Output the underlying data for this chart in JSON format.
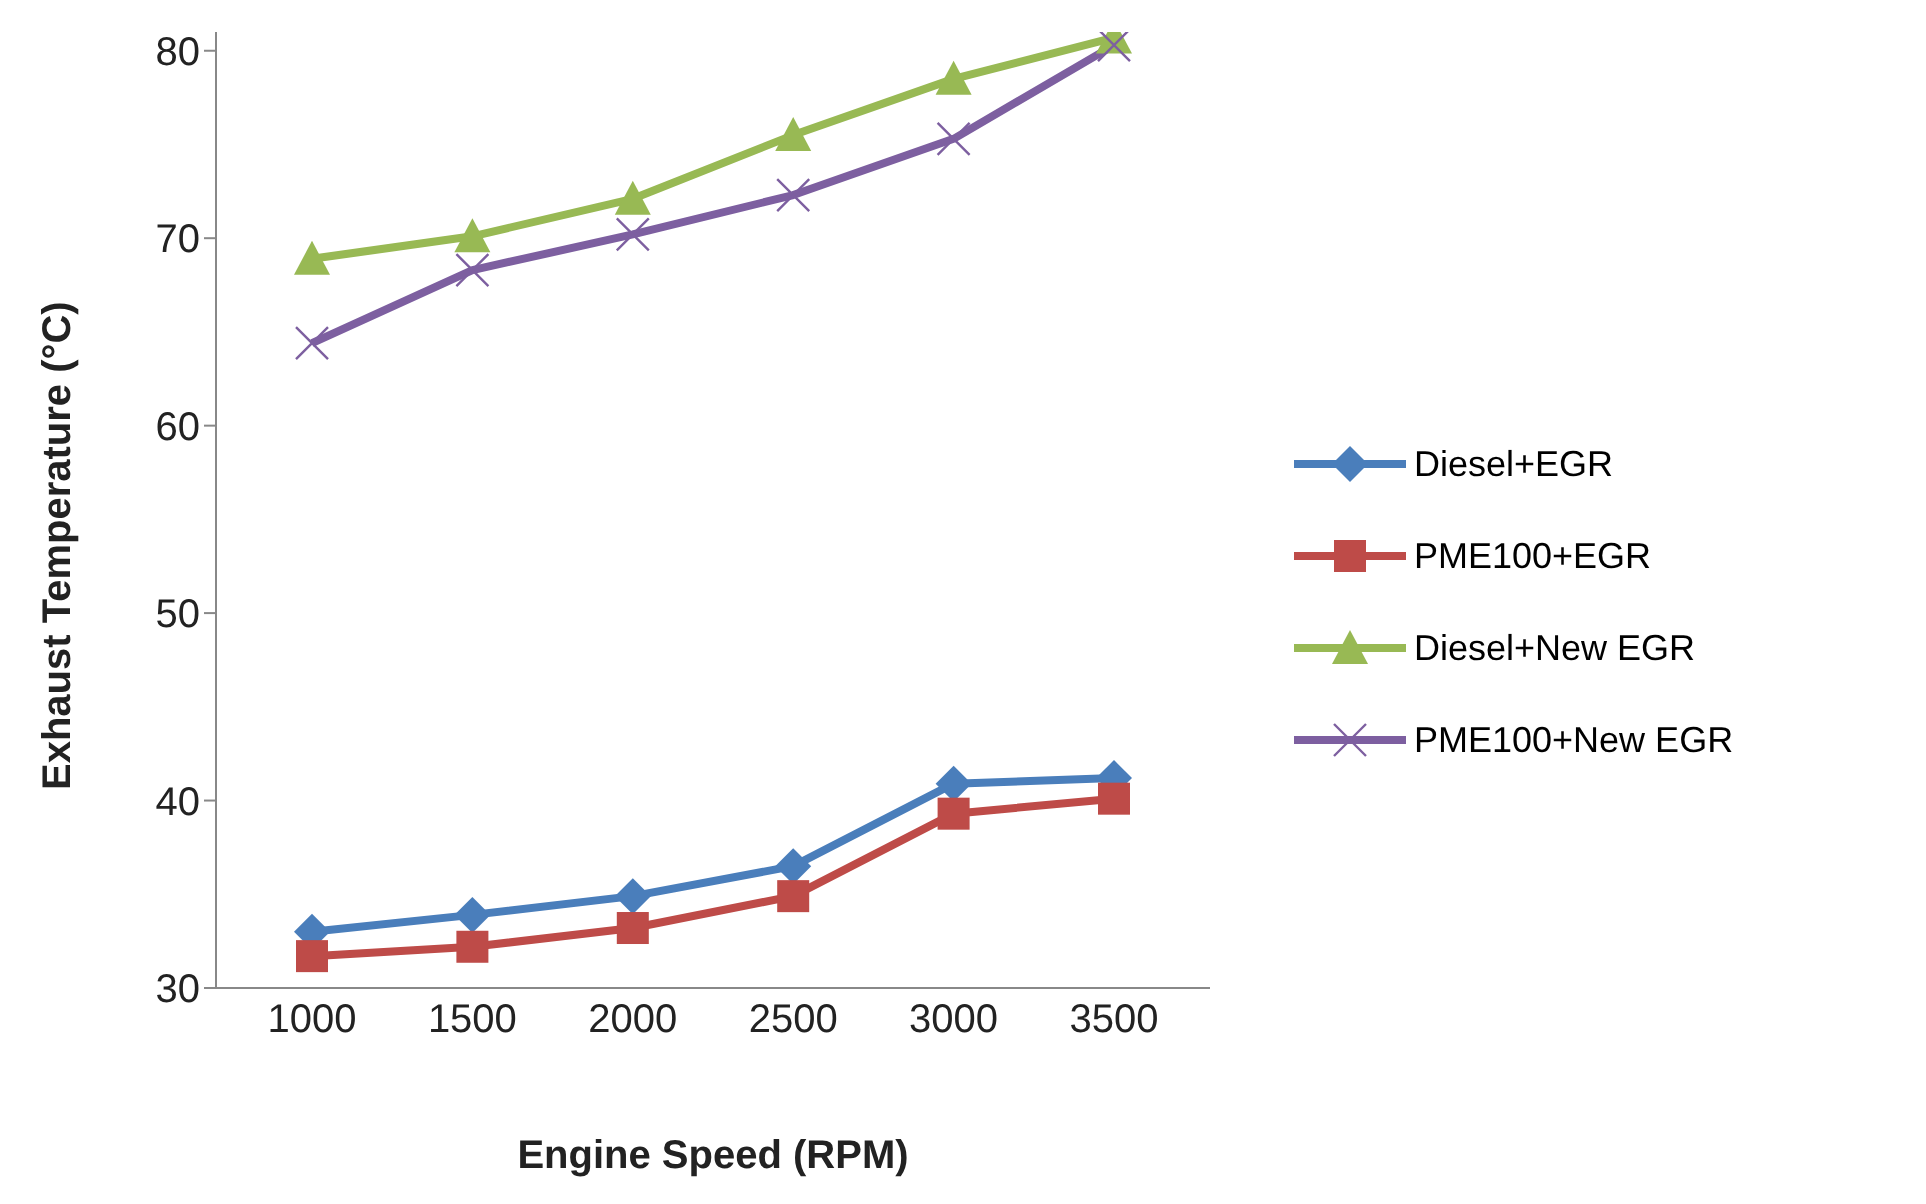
{
  "chart_data": {
    "type": "line",
    "xlabel": "Engine Speed (RPM)",
    "ylabel": "Exhaust Temperature (°C)",
    "categories": [
      "1000",
      "1500",
      "2000",
      "2500",
      "3000",
      "3500"
    ],
    "ylim": [
      30,
      81
    ],
    "yticks": [
      30,
      40,
      50,
      60,
      70,
      80
    ],
    "grid": false,
    "legend": "right",
    "line_style": "solid",
    "series": [
      {
        "name": "Diesel+EGR",
        "color": "#4a7ebb",
        "marker": "diamond",
        "values": [
          33.0,
          33.9,
          34.9,
          36.5,
          40.9,
          41.2
        ]
      },
      {
        "name": "PME100+EGR",
        "color": "#be4b48",
        "marker": "square",
        "values": [
          31.7,
          32.2,
          33.2,
          34.9,
          39.3,
          40.1
        ]
      },
      {
        "name": "Diesel+New EGR",
        "color": "#98b954",
        "marker": "triangle",
        "values": [
          68.9,
          70.1,
          72.1,
          75.5,
          78.5,
          80.7
        ]
      },
      {
        "name": "PME100+New EGR",
        "color": "#7d5fa0",
        "marker": "cross",
        "values": [
          64.4,
          68.3,
          70.2,
          72.3,
          75.3,
          80.3
        ]
      }
    ]
  }
}
